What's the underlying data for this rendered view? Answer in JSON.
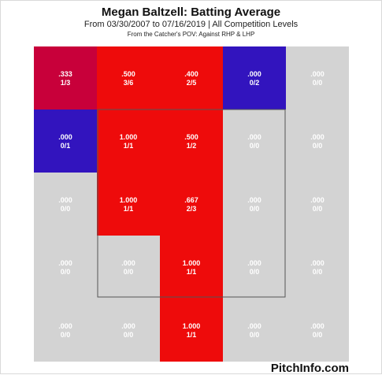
{
  "header": {
    "title": "Megan Baltzell: Batting Average",
    "subtitle": "From 03/30/2007 to 07/16/2019 | All Competition Levels",
    "subtitle2": "From the Catcher's POV:  Against RHP & LHP"
  },
  "footer": {
    "brand": "PitchInfo.com"
  },
  "colors": {
    "neutral": "#d3d3d3",
    "red": "#ee0b0b",
    "dark_red": "#c8003a",
    "blue": "#3214be",
    "zone_border": "#555555"
  },
  "chart_data": {
    "type": "heatmap",
    "rows": 5,
    "cols": 5,
    "strike_zone": {
      "row_start": 1,
      "row_end": 3,
      "col_start": 1,
      "col_end": 3
    },
    "cells": [
      [
        {
          "avg": ".333",
          "hits": "1/3",
          "color": "dark_red"
        },
        {
          "avg": ".500",
          "hits": "3/6",
          "color": "red"
        },
        {
          "avg": ".400",
          "hits": "2/5",
          "color": "red"
        },
        {
          "avg": ".000",
          "hits": "0/2",
          "color": "blue"
        },
        {
          "avg": ".000",
          "hits": "0/0",
          "color": "neutral"
        }
      ],
      [
        {
          "avg": ".000",
          "hits": "0/1",
          "color": "blue"
        },
        {
          "avg": "1.000",
          "hits": "1/1",
          "color": "red"
        },
        {
          "avg": ".500",
          "hits": "1/2",
          "color": "red"
        },
        {
          "avg": ".000",
          "hits": "0/0",
          "color": "neutral"
        },
        {
          "avg": ".000",
          "hits": "0/0",
          "color": "neutral"
        }
      ],
      [
        {
          "avg": ".000",
          "hits": "0/0",
          "color": "neutral"
        },
        {
          "avg": "1.000",
          "hits": "1/1",
          "color": "red"
        },
        {
          "avg": ".667",
          "hits": "2/3",
          "color": "red"
        },
        {
          "avg": ".000",
          "hits": "0/0",
          "color": "neutral"
        },
        {
          "avg": ".000",
          "hits": "0/0",
          "color": "neutral"
        }
      ],
      [
        {
          "avg": ".000",
          "hits": "0/0",
          "color": "neutral"
        },
        {
          "avg": ".000",
          "hits": "0/0",
          "color": "neutral"
        },
        {
          "avg": "1.000",
          "hits": "1/1",
          "color": "red"
        },
        {
          "avg": ".000",
          "hits": "0/0",
          "color": "neutral"
        },
        {
          "avg": ".000",
          "hits": "0/0",
          "color": "neutral"
        }
      ],
      [
        {
          "avg": ".000",
          "hits": "0/0",
          "color": "neutral"
        },
        {
          "avg": ".000",
          "hits": "0/0",
          "color": "neutral"
        },
        {
          "avg": "1.000",
          "hits": "1/1",
          "color": "red"
        },
        {
          "avg": ".000",
          "hits": "0/0",
          "color": "neutral"
        },
        {
          "avg": ".000",
          "hits": "0/0",
          "color": "neutral"
        }
      ]
    ]
  }
}
